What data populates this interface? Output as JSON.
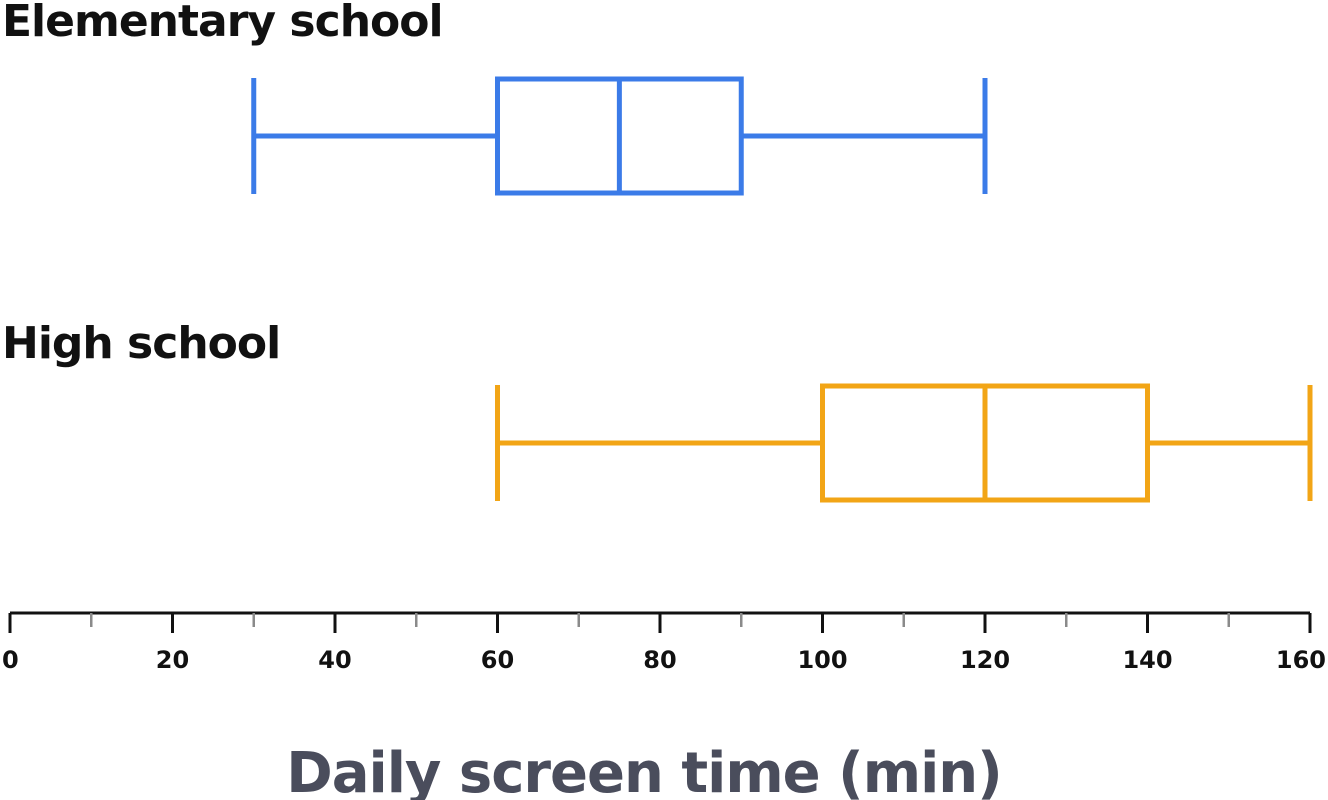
{
  "chart_data": {
    "type": "boxplot",
    "orientation": "horizontal",
    "xlabel": "Daily screen time (min)",
    "xlim": [
      0,
      160
    ],
    "major_ticks": [
      0,
      20,
      40,
      60,
      80,
      100,
      120,
      140,
      160
    ],
    "minor_ticks": [
      10,
      30,
      50,
      70,
      90,
      110,
      130,
      150
    ],
    "series": [
      {
        "name": "Elementary school",
        "color": "#3b7be8",
        "min": 30,
        "q1": 60,
        "median": 75,
        "q3": 90,
        "max": 120
      },
      {
        "name": "High school",
        "color": "#f2a516",
        "min": 60,
        "q1": 100,
        "median": 120,
        "q3": 140,
        "max": 160
      }
    ]
  }
}
